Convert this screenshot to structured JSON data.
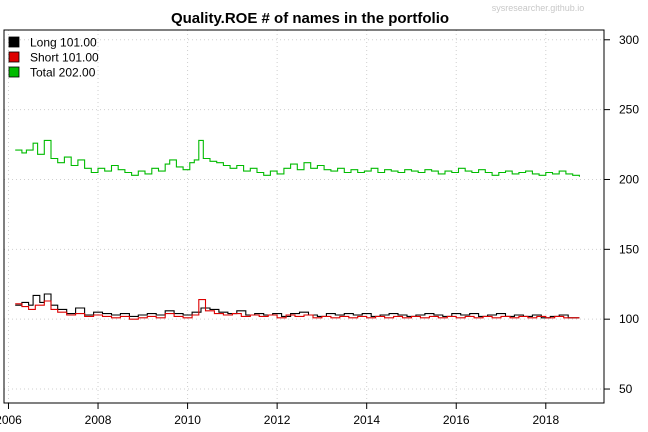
{
  "chart_data": {
    "type": "line",
    "title": "Quality.ROE # of names in the portfolio",
    "watermark": "sysresearcher.github.io",
    "xlabel": "",
    "ylabel": "",
    "xlim": [
      2005.9,
      2019.3
    ],
    "ylim": [
      40,
      307
    ],
    "x_ticks": [
      2006,
      2008,
      2010,
      2012,
      2014,
      2016,
      2018
    ],
    "y_ticks": [
      50,
      100,
      150,
      200,
      250,
      300
    ],
    "grid": true,
    "legend_position": "top-left",
    "series": [
      {
        "name": "Long 101.00",
        "color": "#000000",
        "points": [
          [
            2006.15,
            110
          ],
          [
            2006.3,
            112
          ],
          [
            2006.45,
            110
          ],
          [
            2006.55,
            117
          ],
          [
            2006.7,
            112
          ],
          [
            2006.8,
            118
          ],
          [
            2006.95,
            110
          ],
          [
            2007.1,
            107
          ],
          [
            2007.3,
            104
          ],
          [
            2007.5,
            108
          ],
          [
            2007.7,
            103
          ],
          [
            2007.9,
            105
          ],
          [
            2008.1,
            104
          ],
          [
            2008.3,
            103
          ],
          [
            2008.5,
            104
          ],
          [
            2008.7,
            102
          ],
          [
            2008.9,
            103
          ],
          [
            2009.1,
            104
          ],
          [
            2009.3,
            103
          ],
          [
            2009.5,
            106
          ],
          [
            2009.7,
            104
          ],
          [
            2009.9,
            103
          ],
          [
            2010.1,
            105
          ],
          [
            2010.3,
            108
          ],
          [
            2010.5,
            107
          ],
          [
            2010.7,
            105
          ],
          [
            2010.9,
            104
          ],
          [
            2011.1,
            106
          ],
          [
            2011.3,
            103
          ],
          [
            2011.5,
            104
          ],
          [
            2011.7,
            103
          ],
          [
            2011.9,
            104
          ],
          [
            2012.1,
            102
          ],
          [
            2012.3,
            104
          ],
          [
            2012.5,
            105
          ],
          [
            2012.7,
            103
          ],
          [
            2012.9,
            102
          ],
          [
            2013.1,
            104
          ],
          [
            2013.3,
            103
          ],
          [
            2013.5,
            104
          ],
          [
            2013.7,
            103
          ],
          [
            2013.9,
            104
          ],
          [
            2014.1,
            102
          ],
          [
            2014.3,
            103
          ],
          [
            2014.5,
            104
          ],
          [
            2014.7,
            103
          ],
          [
            2014.9,
            102
          ],
          [
            2015.1,
            103
          ],
          [
            2015.3,
            104
          ],
          [
            2015.5,
            103
          ],
          [
            2015.7,
            102
          ],
          [
            2015.9,
            104
          ],
          [
            2016.1,
            103
          ],
          [
            2016.3,
            104
          ],
          [
            2016.5,
            102
          ],
          [
            2016.7,
            103
          ],
          [
            2016.9,
            104
          ],
          [
            2017.1,
            102
          ],
          [
            2017.3,
            103
          ],
          [
            2017.5,
            102
          ],
          [
            2017.7,
            103
          ],
          [
            2017.9,
            101
          ],
          [
            2018.1,
            102
          ],
          [
            2018.3,
            103
          ],
          [
            2018.5,
            101
          ],
          [
            2018.75,
            101
          ]
        ]
      },
      {
        "name": "Short 101.00",
        "color": "#dd0000",
        "points": [
          [
            2006.15,
            111
          ],
          [
            2006.3,
            109
          ],
          [
            2006.45,
            107
          ],
          [
            2006.6,
            110
          ],
          [
            2006.8,
            113
          ],
          [
            2006.95,
            107
          ],
          [
            2007.1,
            105
          ],
          [
            2007.3,
            103
          ],
          [
            2007.5,
            104
          ],
          [
            2007.7,
            102
          ],
          [
            2007.9,
            103
          ],
          [
            2008.1,
            102
          ],
          [
            2008.3,
            101
          ],
          [
            2008.5,
            102
          ],
          [
            2008.7,
            100
          ],
          [
            2008.9,
            101
          ],
          [
            2009.1,
            102
          ],
          [
            2009.3,
            101
          ],
          [
            2009.5,
            104
          ],
          [
            2009.7,
            102
          ],
          [
            2009.9,
            101
          ],
          [
            2010.1,
            103
          ],
          [
            2010.25,
            114
          ],
          [
            2010.4,
            106
          ],
          [
            2010.6,
            104
          ],
          [
            2010.8,
            103
          ],
          [
            2011.0,
            104
          ],
          [
            2011.2,
            102
          ],
          [
            2011.4,
            103
          ],
          [
            2011.6,
            102
          ],
          [
            2011.8,
            103
          ],
          [
            2012.0,
            101
          ],
          [
            2012.2,
            103
          ],
          [
            2012.4,
            102
          ],
          [
            2012.6,
            103
          ],
          [
            2012.8,
            101
          ],
          [
            2013.0,
            102
          ],
          [
            2013.2,
            101
          ],
          [
            2013.4,
            102
          ],
          [
            2013.6,
            101
          ],
          [
            2013.8,
            102
          ],
          [
            2014.0,
            101
          ],
          [
            2014.2,
            102
          ],
          [
            2014.4,
            101
          ],
          [
            2014.6,
            102
          ],
          [
            2014.8,
            101
          ],
          [
            2015.0,
            102
          ],
          [
            2015.2,
            101
          ],
          [
            2015.4,
            102
          ],
          [
            2015.6,
            101
          ],
          [
            2015.8,
            102
          ],
          [
            2016.0,
            101
          ],
          [
            2016.2,
            102
          ],
          [
            2016.4,
            101
          ],
          [
            2016.6,
            102
          ],
          [
            2016.8,
            101
          ],
          [
            2017.0,
            102
          ],
          [
            2017.2,
            101
          ],
          [
            2017.4,
            102
          ],
          [
            2017.6,
            101
          ],
          [
            2017.8,
            102
          ],
          [
            2018.0,
            101
          ],
          [
            2018.2,
            102
          ],
          [
            2018.4,
            101
          ],
          [
            2018.75,
            101
          ]
        ]
      },
      {
        "name": "Total 202.00",
        "color": "#00bb00",
        "points": [
          [
            2006.15,
            221
          ],
          [
            2006.3,
            219
          ],
          [
            2006.4,
            221
          ],
          [
            2006.55,
            226
          ],
          [
            2006.65,
            218
          ],
          [
            2006.8,
            228
          ],
          [
            2006.95,
            215
          ],
          [
            2007.1,
            212
          ],
          [
            2007.25,
            216
          ],
          [
            2007.4,
            210
          ],
          [
            2007.55,
            214
          ],
          [
            2007.7,
            208
          ],
          [
            2007.85,
            205
          ],
          [
            2008.0,
            208
          ],
          [
            2008.15,
            206
          ],
          [
            2008.3,
            210
          ],
          [
            2008.45,
            207
          ],
          [
            2008.6,
            205
          ],
          [
            2008.75,
            203
          ],
          [
            2008.9,
            206
          ],
          [
            2009.05,
            204
          ],
          [
            2009.2,
            208
          ],
          [
            2009.35,
            206
          ],
          [
            2009.5,
            211
          ],
          [
            2009.6,
            214
          ],
          [
            2009.75,
            209
          ],
          [
            2009.9,
            207
          ],
          [
            2010.05,
            212
          ],
          [
            2010.15,
            214
          ],
          [
            2010.25,
            228
          ],
          [
            2010.35,
            215
          ],
          [
            2010.5,
            213
          ],
          [
            2010.65,
            212
          ],
          [
            2010.8,
            210
          ],
          [
            2010.95,
            208
          ],
          [
            2011.1,
            210
          ],
          [
            2011.25,
            206
          ],
          [
            2011.4,
            208
          ],
          [
            2011.55,
            205
          ],
          [
            2011.7,
            203
          ],
          [
            2011.85,
            206
          ],
          [
            2012.0,
            204
          ],
          [
            2012.15,
            208
          ],
          [
            2012.3,
            211
          ],
          [
            2012.45,
            207
          ],
          [
            2012.6,
            212
          ],
          [
            2012.75,
            208
          ],
          [
            2012.9,
            210
          ],
          [
            2013.05,
            207
          ],
          [
            2013.2,
            206
          ],
          [
            2013.35,
            208
          ],
          [
            2013.5,
            205
          ],
          [
            2013.65,
            207
          ],
          [
            2013.8,
            205
          ],
          [
            2013.95,
            206
          ],
          [
            2014.1,
            208
          ],
          [
            2014.25,
            205
          ],
          [
            2014.4,
            207
          ],
          [
            2014.55,
            206
          ],
          [
            2014.7,
            205
          ],
          [
            2014.85,
            207
          ],
          [
            2015.0,
            206
          ],
          [
            2015.15,
            205
          ],
          [
            2015.3,
            207
          ],
          [
            2015.45,
            206
          ],
          [
            2015.6,
            204
          ],
          [
            2015.75,
            206
          ],
          [
            2015.9,
            205
          ],
          [
            2016.05,
            208
          ],
          [
            2016.2,
            206
          ],
          [
            2016.35,
            205
          ],
          [
            2016.5,
            207
          ],
          [
            2016.65,
            205
          ],
          [
            2016.8,
            203
          ],
          [
            2016.95,
            205
          ],
          [
            2017.1,
            206
          ],
          [
            2017.25,
            204
          ],
          [
            2017.4,
            205
          ],
          [
            2017.55,
            206
          ],
          [
            2017.7,
            204
          ],
          [
            2017.85,
            203
          ],
          [
            2018.0,
            205
          ],
          [
            2018.15,
            204
          ],
          [
            2018.3,
            206
          ],
          [
            2018.45,
            204
          ],
          [
            2018.6,
            203
          ],
          [
            2018.75,
            202
          ]
        ]
      }
    ]
  },
  "colors": {
    "frame": "#000000",
    "grid": "#cfcfcf",
    "background": "#ffffff"
  }
}
